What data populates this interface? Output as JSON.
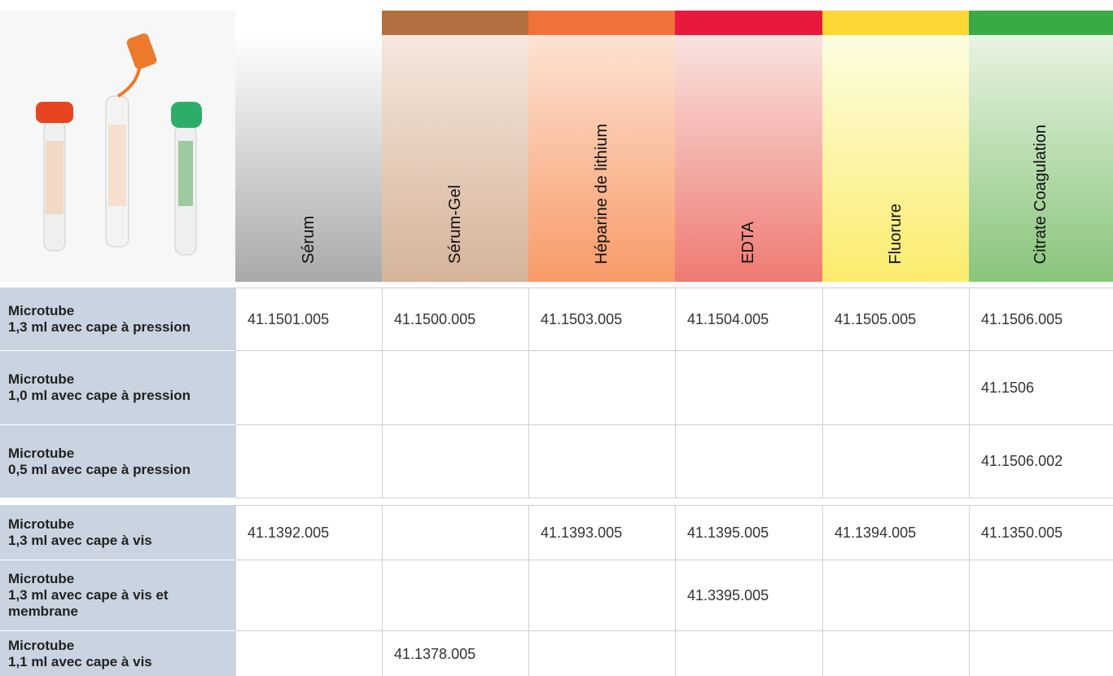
{
  "table": {
    "columns": [
      "Sérum",
      "Sérum-Gel",
      "Héparine de lithium",
      "EDTA",
      "Fluorure",
      "Citrate Coagulation"
    ],
    "groups": [
      {
        "rows": [
          {
            "label": [
              "Microtube",
              "1,3 ml avec cape à pression"
            ],
            "cells": [
              "41.1501.005",
              "41.1500.005",
              "41.1503.005",
              "41.1504.005",
              "41.1505.005",
              "41.1506.005"
            ]
          },
          {
            "label": [
              "Microtube",
              "1,0 ml avec cape à pression"
            ],
            "cells": [
              null,
              null,
              null,
              null,
              null,
              "41.1506"
            ]
          },
          {
            "label": [
              "Microtube",
              "0,5 ml avec cape à pression"
            ],
            "cells": [
              null,
              null,
              null,
              null,
              null,
              "41.1506.002"
            ]
          }
        ]
      },
      {
        "rows": [
          {
            "label": [
              "Microtube",
              "1,3 ml avec cape à vis"
            ],
            "cells": [
              "41.1392.005",
              null,
              "41.1393.005",
              "41.1395.005",
              "41.1394.005",
              "41.1350.005"
            ]
          },
          {
            "label": [
              "Microtube",
              "1,3 ml avec cape à vis et membrane"
            ],
            "cells": [
              null,
              null,
              null,
              "41.3395.005",
              null,
              null
            ]
          },
          {
            "label": [
              "Microtube",
              "1,1 ml avec cape à vis"
            ],
            "cells": [
              null,
              "41.1378.005",
              null,
              null,
              null,
              null
            ]
          }
        ]
      }
    ]
  }
}
